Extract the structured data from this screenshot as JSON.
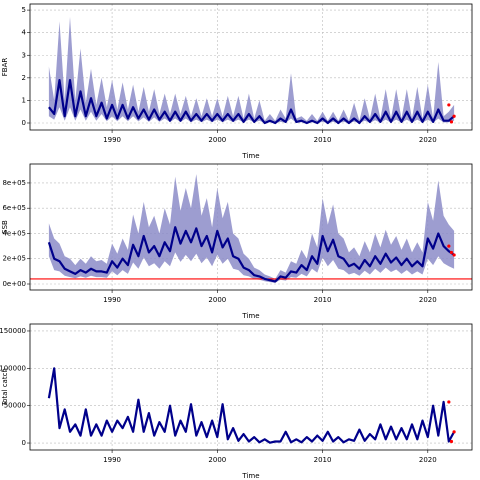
{
  "chart_data": [
    {
      "type": "line",
      "ylabel": "FBAR",
      "xlabel": "Time",
      "color": "#00008b",
      "band_color": "#8c8cc8",
      "grid": true,
      "xlim": [
        1982.2,
        2024.2
      ],
      "ylim": [
        -0.31,
        5.27
      ],
      "xticks": [
        1990,
        2000,
        2010,
        2020
      ],
      "yticks": [
        0,
        1,
        2,
        3,
        4,
        5
      ],
      "x": [
        1984,
        1984.5,
        1985,
        1985.5,
        1986,
        1986.5,
        1987,
        1987.5,
        1988,
        1988.5,
        1989,
        1989.5,
        1990,
        1990.5,
        1991,
        1991.5,
        1992,
        1992.5,
        1993,
        1993.5,
        1994,
        1994.5,
        1995,
        1995.5,
        1996,
        1996.5,
        1997,
        1997.5,
        1998,
        1998.5,
        1999,
        1999.5,
        2000,
        2000.5,
        2001,
        2001.5,
        2002,
        2002.5,
        2003,
        2003.5,
        2004,
        2004.5,
        2005,
        2005.5,
        2006,
        2006.5,
        2007,
        2007.5,
        2008,
        2008.5,
        2009,
        2009.5,
        2010,
        2010.5,
        2011,
        2011.5,
        2012,
        2012.5,
        2013,
        2013.5,
        2014,
        2014.5,
        2015,
        2015.5,
        2016,
        2016.5,
        2017,
        2017.5,
        2018,
        2018.5,
        2019,
        2019.5,
        2020,
        2020.5,
        2021,
        2021.5,
        2022,
        2022.5
      ],
      "values": [
        0.7,
        0.4,
        1.9,
        0.3,
        1.9,
        0.3,
        1.4,
        0.3,
        1.1,
        0.3,
        0.9,
        0.2,
        0.8,
        0.2,
        0.8,
        0.2,
        0.7,
        0.2,
        0.6,
        0.15,
        0.6,
        0.15,
        0.5,
        0.1,
        0.5,
        0.1,
        0.5,
        0.1,
        0.4,
        0.1,
        0.4,
        0.1,
        0.4,
        0.1,
        0.4,
        0.1,
        0.4,
        0.05,
        0.4,
        0.05,
        0.3,
        0,
        0.1,
        0,
        0.2,
        0.05,
        0.6,
        0.05,
        0.1,
        0,
        0.1,
        0,
        0.2,
        0,
        0.2,
        0,
        0.2,
        0,
        0.2,
        0,
        0.3,
        0.05,
        0.4,
        0.05,
        0.5,
        0.05,
        0.5,
        0.05,
        0.5,
        0.05,
        0.5,
        0.05,
        0.5,
        0.05,
        0.6,
        0.1,
        0.1,
        0.3
      ],
      "upper": [
        2.5,
        1.0,
        4.5,
        1.0,
        4.7,
        1.0,
        3.3,
        0.9,
        2.4,
        0.8,
        2.0,
        0.7,
        1.9,
        0.6,
        1.8,
        0.6,
        1.7,
        0.5,
        1.6,
        0.5,
        1.5,
        0.4,
        1.3,
        0.4,
        1.3,
        0.4,
        1.2,
        0.3,
        1.1,
        0.3,
        1.1,
        0.3,
        1.1,
        0.3,
        1.2,
        0.3,
        1.2,
        0.2,
        1.3,
        0.2,
        1.0,
        0.1,
        0.4,
        0.1,
        0.6,
        0.2,
        2.2,
        0.2,
        0.3,
        0.1,
        0.4,
        0.1,
        0.5,
        0.1,
        0.5,
        0.1,
        0.6,
        0.1,
        0.9,
        0.1,
        1.1,
        0.2,
        1.3,
        0.2,
        1.5,
        0.2,
        1.5,
        0.2,
        1.5,
        0.2,
        1.6,
        0.2,
        1.7,
        0.2,
        2.7,
        0.3,
        0.5,
        0.8
      ],
      "lower": [
        0.3,
        0.15,
        0.7,
        0.1,
        0.7,
        0.1,
        0.6,
        0.1,
        0.5,
        0.1,
        0.4,
        0.08,
        0.3,
        0.08,
        0.3,
        0.08,
        0.3,
        0.07,
        0.25,
        0.05,
        0.25,
        0.05,
        0.2,
        0.04,
        0.2,
        0.04,
        0.2,
        0.03,
        0.15,
        0.03,
        0.15,
        0.03,
        0.15,
        0.03,
        0.15,
        0.03,
        0.15,
        0.02,
        0.15,
        0.02,
        0.1,
        0,
        0.03,
        0,
        0.05,
        0.01,
        0.2,
        0.01,
        0.03,
        0,
        0.03,
        0,
        0.05,
        0,
        0.05,
        0,
        0.05,
        0,
        0.06,
        0,
        0.1,
        0.01,
        0.12,
        0.01,
        0.15,
        0.01,
        0.15,
        0.01,
        0.15,
        0.01,
        0.15,
        0.01,
        0.15,
        0.01,
        0.2,
        0.02,
        0.03,
        0.1
      ],
      "points": {
        "x": [
          2022,
          2022.25,
          2022.5
        ],
        "values": [
          0.8,
          0.05,
          0.3
        ],
        "color": "#ff0000"
      }
    },
    {
      "type": "line",
      "ylabel": "SSB",
      "xlabel": "Time",
      "color": "#00008b",
      "band_color": "#8c8cc8",
      "grid": true,
      "xlim": [
        1982.2,
        2024.2
      ],
      "ylim": [
        -47500,
        950000
      ],
      "xticks": [
        1990,
        2000,
        2010,
        2020
      ],
      "yticks": [
        {
          "value": 0,
          "label": "0e+00"
        },
        {
          "value": 200000,
          "label": "2e+05"
        },
        {
          "value": 400000,
          "label": "4e+05"
        },
        {
          "value": 600000,
          "label": "6e+05"
        },
        {
          "value": 800000,
          "label": "8e+05"
        }
      ],
      "x": [
        1984,
        1984.5,
        1985,
        1985.5,
        1986,
        1986.5,
        1987,
        1987.5,
        1988,
        1988.5,
        1989,
        1989.5,
        1990,
        1990.5,
        1991,
        1991.5,
        1992,
        1992.5,
        1993,
        1993.5,
        1994,
        1994.5,
        1995,
        1995.5,
        1996,
        1996.5,
        1997,
        1997.5,
        1998,
        1998.5,
        1999,
        1999.5,
        2000,
        2000.5,
        2001,
        2001.5,
        2002,
        2002.5,
        2003,
        2003.5,
        2004,
        2004.5,
        2005,
        2005.5,
        2006,
        2006.5,
        2007,
        2007.5,
        2008,
        2008.5,
        2009,
        2009.5,
        2010,
        2010.5,
        2011,
        2011.5,
        2012,
        2012.5,
        2013,
        2013.5,
        2014,
        2014.5,
        2015,
        2015.5,
        2016,
        2016.5,
        2017,
        2017.5,
        2018,
        2018.5,
        2019,
        2019.5,
        2020,
        2020.5,
        2021,
        2021.5,
        2022,
        2022.5
      ],
      "values": [
        330000,
        200000,
        180000,
        120000,
        100000,
        80000,
        110000,
        90000,
        120000,
        100000,
        100000,
        90000,
        180000,
        130000,
        200000,
        150000,
        310000,
        220000,
        380000,
        250000,
        300000,
        220000,
        330000,
        260000,
        450000,
        320000,
        420000,
        330000,
        440000,
        300000,
        380000,
        250000,
        420000,
        290000,
        360000,
        220000,
        200000,
        130000,
        110000,
        70000,
        60000,
        40000,
        30000,
        20000,
        60000,
        50000,
        100000,
        90000,
        150000,
        110000,
        220000,
        160000,
        380000,
        260000,
        350000,
        220000,
        200000,
        140000,
        160000,
        120000,
        190000,
        140000,
        220000,
        160000,
        240000,
        170000,
        210000,
        150000,
        200000,
        140000,
        180000,
        140000,
        360000,
        280000,
        400000,
        300000,
        260000,
        230000
      ],
      "upper": [
        480000,
        360000,
        320000,
        220000,
        200000,
        150000,
        200000,
        160000,
        220000,
        180000,
        190000,
        160000,
        320000,
        240000,
        360000,
        270000,
        550000,
        400000,
        650000,
        450000,
        540000,
        400000,
        600000,
        470000,
        850000,
        580000,
        760000,
        600000,
        870000,
        540000,
        680000,
        450000,
        760000,
        520000,
        650000,
        400000,
        360000,
        240000,
        200000,
        130000,
        110000,
        75000,
        60000,
        40000,
        110000,
        90000,
        180000,
        160000,
        270000,
        200000,
        400000,
        290000,
        680000,
        470000,
        630000,
        400000,
        360000,
        250000,
        290000,
        220000,
        340000,
        250000,
        400000,
        290000,
        430000,
        310000,
        380000,
        270000,
        360000,
        250000,
        330000,
        250000,
        650000,
        500000,
        820000,
        540000,
        470000,
        420000
      ],
      "lower": [
        220000,
        110000,
        100000,
        65000,
        55000,
        45000,
        60000,
        50000,
        65000,
        55000,
        55000,
        50000,
        100000,
        70000,
        110000,
        80000,
        170000,
        120000,
        210000,
        140000,
        165000,
        120000,
        180000,
        140000,
        250000,
        175000,
        230000,
        180000,
        240000,
        165000,
        210000,
        140000,
        230000,
        160000,
        200000,
        120000,
        110000,
        70000,
        60000,
        38000,
        33000,
        22000,
        15000,
        10000,
        33000,
        27000,
        55000,
        50000,
        80000,
        60000,
        120000,
        90000,
        210000,
        140000,
        190000,
        120000,
        110000,
        75000,
        88000,
        65000,
        105000,
        75000,
        120000,
        88000,
        130000,
        95000,
        115000,
        80000,
        110000,
        75000,
        100000,
        75000,
        200000,
        150000,
        220000,
        165000,
        140000,
        120000
      ],
      "hline": {
        "value": 40000,
        "color": "#ff0000"
      },
      "points": {
        "x": [
          2022,
          2022.25,
          2022.5
        ],
        "values": [
          300000,
          250000,
          230000
        ],
        "color": "#ff0000"
      }
    },
    {
      "type": "line",
      "ylabel": "Total catch",
      "xlabel": "Time",
      "color": "#00008b",
      "grid": true,
      "xlim": [
        1982.2,
        2024.2
      ],
      "ylim": [
        -9333,
        159333
      ],
      "xticks": [
        1990,
        2000,
        2010,
        2020
      ],
      "yticks": [
        0,
        50000,
        100000,
        150000
      ],
      "x": [
        1984,
        1984.5,
        1985,
        1985.5,
        1986,
        1986.5,
        1987,
        1987.5,
        1988,
        1988.5,
        1989,
        1989.5,
        1990,
        1990.5,
        1991,
        1991.5,
        1992,
        1992.5,
        1993,
        1993.5,
        1994,
        1994.5,
        1995,
        1995.5,
        1996,
        1996.5,
        1997,
        1997.5,
        1998,
        1998.5,
        1999,
        1999.5,
        2000,
        2000.5,
        2001,
        2001.5,
        2002,
        2002.5,
        2003,
        2003.5,
        2004,
        2004.5,
        2005,
        2005.5,
        2006,
        2006.5,
        2007,
        2007.5,
        2008,
        2008.5,
        2009,
        2009.5,
        2010,
        2010.5,
        2011,
        2011.5,
        2012,
        2012.5,
        2013,
        2013.5,
        2014,
        2014.5,
        2015,
        2015.5,
        2016,
        2016.5,
        2017,
        2017.5,
        2018,
        2018.5,
        2019,
        2019.5,
        2020,
        2020.5,
        2021,
        2021.5,
        2022,
        2022.5
      ],
      "values": [
        60000,
        100000,
        20000,
        45000,
        15000,
        25000,
        10000,
        45000,
        10000,
        25000,
        10000,
        30000,
        15000,
        30000,
        20000,
        35000,
        15000,
        58000,
        15000,
        40000,
        10000,
        28000,
        15000,
        50000,
        10000,
        30000,
        15000,
        52000,
        10000,
        28000,
        8000,
        30000,
        8000,
        52000,
        5000,
        20000,
        3000,
        12000,
        2000,
        8000,
        1000,
        5000,
        500,
        2000,
        2000,
        15000,
        1000,
        5000,
        1000,
        8000,
        2000,
        10000,
        3000,
        15000,
        2000,
        8000,
        1000,
        5000,
        3000,
        18000,
        3000,
        12000,
        5000,
        25000,
        5000,
        22000,
        5000,
        20000,
        5000,
        25000,
        5000,
        30000,
        8000,
        50000,
        10000,
        55000,
        2000,
        15000
      ],
      "points": {
        "x": [
          2022,
          2022.25,
          2022.5
        ],
        "values": [
          55000,
          2000,
          15000
        ],
        "color": "#ff0000"
      }
    }
  ]
}
